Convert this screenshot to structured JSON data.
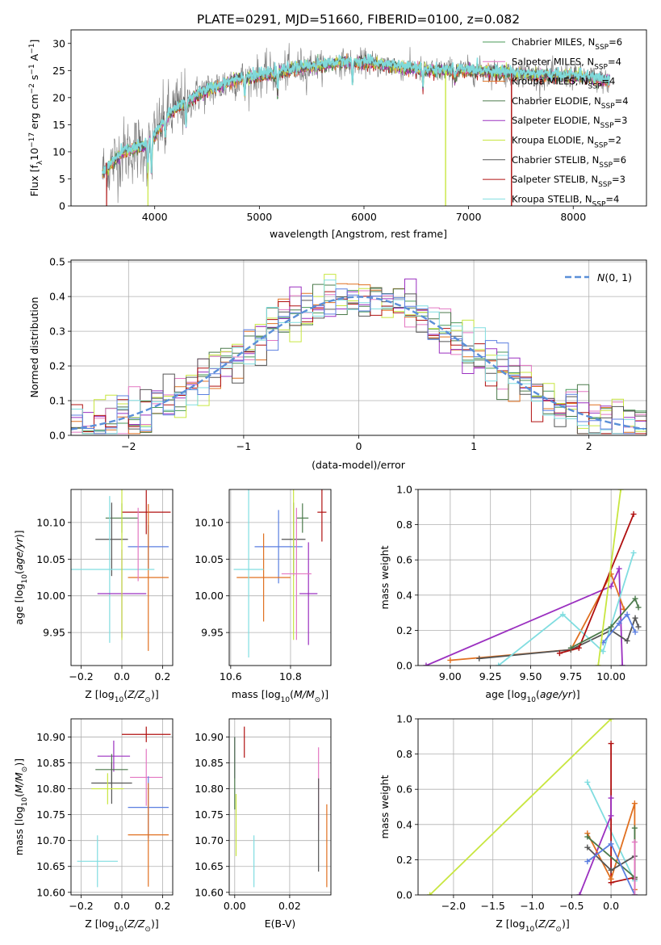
{
  "figure_title": "PLATE=0291, MJD=51660, FIBERID=0100, z=0.082",
  "colors": {
    "chabrier_miles": "#4a9a5a",
    "salpeter_miles": "#e377c2",
    "kroupa_miles": "#e07020",
    "chabrier_elodie": "#4b7a4b",
    "salpeter_elodie": "#9b30c0",
    "kroupa_elodie": "#c8e640",
    "chabrier_stelib": "#555555",
    "salpeter_stelib": "#b01010",
    "kroupa_stelib": "#80dde0",
    "blue": "#5b7fe0",
    "normal_curve": "#5a8fd8"
  },
  "chart_data": [
    {
      "id": "spectrum",
      "type": "line",
      "xlabel": "wavelength [Angstrom, rest frame]",
      "ylabel_parts": [
        "Flux [f",
        "λ",
        "10",
        "−17",
        " erg cm",
        "−2",
        " s",
        "−1",
        " A",
        "−1",
        "]"
      ],
      "xlim": [
        3200,
        8700
      ],
      "ylim": [
        0,
        32.5
      ],
      "xticks": [
        4000,
        5000,
        6000,
        7000,
        8000
      ],
      "yticks": [
        0,
        5,
        10,
        15,
        20,
        25,
        30
      ],
      "legend": [
        {
          "base": "Chabrier MILES, N",
          "n": "6",
          "color": "chabrier_miles"
        },
        {
          "base": "Salpeter MILES, N",
          "n": "4",
          "color": "salpeter_miles"
        },
        {
          "base": "Kroupa MILES, N",
          "n": "4",
          "color": "kroupa_miles"
        },
        {
          "base": "Chabrier ELODIE, N",
          "n": "4",
          "color": "chabrier_elodie"
        },
        {
          "base": "Salpeter ELODIE, N",
          "n": "3",
          "color": "salpeter_elodie"
        },
        {
          "base": "Kroupa ELODIE, N",
          "n": "2",
          "color": "kroupa_elodie"
        },
        {
          "base": "Chabrier STELIB, N",
          "n": "6",
          "color": "chabrier_stelib"
        },
        {
          "base": "Salpeter STELIB, N",
          "n": "3",
          "color": "salpeter_stelib"
        },
        {
          "base": "Kroupa STELIB, N",
          "n": "4",
          "color": "kroupa_stelib"
        }
      ],
      "legend_sub": "SSP",
      "continuum": [
        [
          3500,
          6
        ],
        [
          3600,
          8
        ],
        [
          3700,
          10
        ],
        [
          3800,
          10.5
        ],
        [
          3900,
          11
        ],
        [
          4000,
          13
        ],
        [
          4100,
          16
        ],
        [
          4200,
          18
        ],
        [
          4300,
          19
        ],
        [
          4400,
          20.5
        ],
        [
          4600,
          22
        ],
        [
          4800,
          23.5
        ],
        [
          5000,
          24
        ],
        [
          5200,
          24.8
        ],
        [
          5400,
          25.5
        ],
        [
          5600,
          26
        ],
        [
          5800,
          26.5
        ],
        [
          6000,
          26.5
        ],
        [
          6200,
          26
        ],
        [
          6400,
          25.5
        ],
        [
          6600,
          25
        ],
        [
          6800,
          25
        ],
        [
          7000,
          25
        ],
        [
          7200,
          24.8
        ],
        [
          7400,
          24.5
        ],
        [
          7600,
          24.2
        ],
        [
          7800,
          24
        ],
        [
          8000,
          24
        ],
        [
          8200,
          23.5
        ],
        [
          8350,
          23
        ]
      ],
      "absorption": [
        [
          3934,
          6
        ],
        [
          3969,
          6
        ],
        [
          4101,
          3
        ],
        [
          4300,
          4
        ],
        [
          4861,
          3
        ],
        [
          5175,
          4
        ],
        [
          5890,
          3.5
        ],
        [
          6563,
          3
        ],
        [
          6870,
          2
        ]
      ],
      "drops": [
        {
          "x": 6780,
          "color": "kroupa_elodie"
        },
        {
          "x": 7410,
          "color": "salpeter_stelib"
        }
      ],
      "low_wave_cut": [
        {
          "x": 3540,
          "color": "salpeter_stelib"
        },
        {
          "x": 3935,
          "color": "kroupa_elodie"
        }
      ]
    },
    {
      "id": "residual_hist",
      "type": "bar",
      "xlabel": "(data-model)/error",
      "ylabel": "Normed distribution",
      "xlim": [
        -2.5,
        2.5
      ],
      "ylim": [
        0,
        0.505
      ],
      "xticks": [
        -2,
        -1,
        0,
        1,
        2
      ],
      "yticks": [
        0.0,
        0.1,
        0.2,
        0.3,
        0.4,
        0.5
      ],
      "bin_width": 0.1,
      "legend_label": "N(0,1)"
    },
    {
      "id": "age_vs_Z",
      "type": "scatter",
      "xlabel": "Z [log10(Z/Z⊙)]",
      "ylabel": "age  [log10(age/yr)]",
      "xlim": [
        -0.25,
        0.25
      ],
      "ylim": [
        9.905,
        10.145
      ],
      "xticks": [
        -0.2,
        0.0,
        0.2
      ],
      "yticks": [
        9.95,
        10.0,
        10.05,
        10.1
      ],
      "points": [
        {
          "x": 0.12,
          "y": 10.114,
          "xerr": 0.12,
          "yerr": 0.03,
          "color": "salpeter_stelib"
        },
        {
          "x": 0.0,
          "y": 10.106,
          "xerr": 0.08,
          "yerr": 0.02,
          "color": "chabrier_elodie"
        },
        {
          "x": -0.05,
          "y": 10.077,
          "xerr": 0.08,
          "yerr": 0.05,
          "color": "chabrier_stelib"
        },
        {
          "x": 0.13,
          "y": 10.067,
          "xerr": 0.1,
          "yerr": 0.03,
          "color": "blue"
        },
        {
          "x": 0.13,
          "y": 10.025,
          "xerr": 0.1,
          "yerr": 0.1,
          "color": "kroupa_miles"
        },
        {
          "x": -0.06,
          "y": 10.036,
          "xerr": 0.22,
          "yerr": 0.1,
          "color": "kroupa_stelib"
        },
        {
          "x": 0.0,
          "y": 10.003,
          "xerr": 0.12,
          "yerr": 0.06,
          "color": "salpeter_elodie"
        },
        {
          "x": 0.0,
          "y": 10.07,
          "xerr": 0.0,
          "yerr": 0.13,
          "color": "kroupa_elodie"
        },
        {
          "x": 0.08,
          "y": 10.07,
          "xerr": 0.0,
          "yerr": 0.05,
          "color": "salpeter_miles"
        }
      ]
    },
    {
      "id": "age_vs_mass",
      "type": "scatter",
      "xlabel": "mass [log10(M/M⊙)]",
      "xlim": [
        10.595,
        10.935
      ],
      "ylim": [
        9.905,
        10.145
      ],
      "xticks": [
        10.6,
        10.8
      ],
      "yticks": [
        9.95,
        10.0,
        10.05,
        10.1
      ],
      "points": [
        {
          "x": 10.905,
          "y": 10.114,
          "xerr": 0.015,
          "yerr": 0.04,
          "color": "salpeter_stelib"
        },
        {
          "x": 10.84,
          "y": 10.106,
          "xerr": 0.02,
          "yerr": 0.02,
          "color": "chabrier_elodie"
        },
        {
          "x": 10.81,
          "y": 10.077,
          "xerr": 0.04,
          "yerr": 0.05,
          "color": "chabrier_stelib"
        },
        {
          "x": 10.76,
          "y": 10.067,
          "xerr": 0.08,
          "yerr": 0.05,
          "color": "blue"
        },
        {
          "x": 10.71,
          "y": 10.025,
          "xerr": 0.09,
          "yerr": 0.06,
          "color": "kroupa_miles"
        },
        {
          "x": 10.66,
          "y": 10.036,
          "xerr": 0.05,
          "yerr": 0.12,
          "color": "kroupa_stelib"
        },
        {
          "x": 10.86,
          "y": 10.003,
          "xerr": 0.03,
          "yerr": 0.07,
          "color": "salpeter_elodie"
        },
        {
          "x": 10.81,
          "y": 10.07,
          "xerr": 0.0,
          "yerr": 0.13,
          "color": "kroupa_elodie"
        },
        {
          "x": 10.82,
          "y": 10.03,
          "xerr": 0.05,
          "yerr": 0.09,
          "color": "salpeter_miles"
        }
      ]
    },
    {
      "id": "massweight_vs_age",
      "type": "line",
      "xlabel": "age  [log10(age/yr)]",
      "ylabel": "mass weight",
      "xlim": [
        8.8,
        10.22
      ],
      "ylim": [
        0,
        1.0
      ],
      "xticks": [
        9.0,
        9.25,
        9.5,
        9.75,
        10.0
      ],
      "yticks": [
        0.0,
        0.2,
        0.4,
        0.6,
        0.8,
        1.0
      ],
      "series": [
        {
          "color": "salpeter_elodie",
          "x": [
            8.85,
            10.0,
            10.05,
            10.07
          ],
          "y": [
            0.0,
            0.45,
            0.55,
            0.0
          ]
        },
        {
          "color": "kroupa_miles",
          "x": [
            9.0,
            9.75,
            10.0,
            10.08
          ],
          "y": [
            0.03,
            0.09,
            0.52,
            0.32
          ]
        },
        {
          "color": "chabrier_stelib",
          "x": [
            9.18,
            9.75,
            10.0,
            10.1,
            10.15,
            10.17
          ],
          "y": [
            0.04,
            0.09,
            0.2,
            0.14,
            0.27,
            0.22
          ]
        },
        {
          "color": "kroupa_stelib",
          "x": [
            9.3,
            9.7,
            9.95,
            10.14
          ],
          "y": [
            0.0,
            0.29,
            0.08,
            0.64
          ]
        },
        {
          "color": "salpeter_stelib",
          "x": [
            9.68,
            9.8,
            10.14
          ],
          "y": [
            0.07,
            0.1,
            0.86
          ]
        },
        {
          "color": "chabrier_elodie",
          "x": [
            9.75,
            10.0,
            10.15,
            10.17
          ],
          "y": [
            0.1,
            0.22,
            0.38,
            0.33
          ]
        },
        {
          "color": "blue",
          "x": [
            9.95,
            10.05,
            10.1,
            10.15
          ],
          "y": [
            0.13,
            0.24,
            0.29,
            0.19
          ]
        },
        {
          "color": "kroupa_elodie",
          "x": [
            9.92,
            10.06
          ],
          "y": [
            0.0,
            1.0
          ]
        }
      ]
    },
    {
      "id": "mass_vs_Z",
      "type": "scatter",
      "xlabel": "Z [log10(Z/Z⊙)]",
      "ylabel": "mass [log10(M/M⊙)]",
      "xlim": [
        -0.25,
        0.25
      ],
      "ylim": [
        10.595,
        10.935
      ],
      "xticks": [
        -0.2,
        0.0,
        0.2
      ],
      "yticks": [
        10.6,
        10.65,
        10.7,
        10.75,
        10.8,
        10.85,
        10.9
      ],
      "points": [
        {
          "x": 0.12,
          "y": 10.905,
          "xerr": 0.12,
          "yerr": 0.015,
          "color": "salpeter_stelib"
        },
        {
          "x": -0.04,
          "y": 10.863,
          "xerr": 0.08,
          "yerr": 0.03,
          "color": "salpeter_elodie"
        },
        {
          "x": -0.05,
          "y": 10.837,
          "xerr": 0.08,
          "yerr": 0.03,
          "color": "chabrier_elodie"
        },
        {
          "x": 0.12,
          "y": 10.822,
          "xerr": 0.08,
          "yerr": 0.055,
          "color": "salpeter_miles"
        },
        {
          "x": -0.05,
          "y": 10.811,
          "xerr": 0.1,
          "yerr": 0.04,
          "color": "chabrier_stelib"
        },
        {
          "x": -0.07,
          "y": 10.8,
          "xerr": 0.08,
          "yerr": 0.03,
          "color": "kroupa_elodie"
        },
        {
          "x": 0.13,
          "y": 10.764,
          "xerr": 0.1,
          "yerr": 0.06,
          "color": "blue"
        },
        {
          "x": 0.13,
          "y": 10.711,
          "xerr": 0.1,
          "yerr": 0.1,
          "color": "kroupa_miles"
        },
        {
          "x": -0.12,
          "y": 10.66,
          "xerr": 0.1,
          "yerr": 0.05,
          "color": "kroupa_stelib"
        }
      ]
    },
    {
      "id": "mass_vs_ebv",
      "type": "scatter",
      "xlabel": "E(B-V)",
      "xlim": [
        -0.002,
        0.035
      ],
      "ylim": [
        10.595,
        10.935
      ],
      "xticks": [
        0.0,
        0.02
      ],
      "yticks": [
        10.6,
        10.65,
        10.7,
        10.75,
        10.8,
        10.85,
        10.9
      ],
      "points": [
        {
          "x": 0.0035,
          "y": 10.89,
          "yerr": 0.03,
          "color": "salpeter_stelib"
        },
        {
          "x": 0.0,
          "y": 10.86,
          "yerr": 0.04,
          "color": "salpeter_elodie"
        },
        {
          "x": 0.0,
          "y": 10.83,
          "yerr": 0.07,
          "color": "chabrier_elodie"
        },
        {
          "x": 0.0005,
          "y": 10.73,
          "yerr": 0.06,
          "color": "kroupa_elodie"
        },
        {
          "x": 0.007,
          "y": 10.66,
          "yerr": 0.05,
          "color": "kroupa_stelib"
        },
        {
          "x": 0.0305,
          "y": 10.8,
          "yerr": 0.08,
          "color": "salpeter_miles"
        },
        {
          "x": 0.0305,
          "y": 10.73,
          "yerr": 0.09,
          "color": "chabrier_stelib"
        },
        {
          "x": 0.0335,
          "y": 10.69,
          "yerr": 0.08,
          "color": "kroupa_miles"
        }
      ]
    },
    {
      "id": "massweight_vs_Z",
      "type": "line",
      "xlabel": "Z [log10(Z/Z⊙)]",
      "ylabel": "mass weight",
      "xlim": [
        -2.45,
        0.45
      ],
      "ylim": [
        0,
        1.0
      ],
      "xticks": [
        -2.0,
        -1.5,
        -1.0,
        -0.5,
        0.0
      ],
      "yticks": [
        0.0,
        0.2,
        0.4,
        0.6,
        0.8,
        1.0
      ],
      "series": [
        {
          "color": "kroupa_elodie",
          "x": [
            -2.3,
            0.0
          ],
          "y": [
            0.0,
            1.0
          ]
        },
        {
          "color": "kroupa_stelib",
          "x": [
            -0.3,
            0.3,
            0.3
          ],
          "y": [
            0.64,
            0.08,
            0.0
          ]
        },
        {
          "color": "salpeter_stelib",
          "x": [
            0.0,
            0.0,
            0.3
          ],
          "y": [
            0.86,
            0.07,
            0.1
          ]
        },
        {
          "color": "salpeter_elodie",
          "x": [
            -0.4,
            0.0,
            0.0
          ],
          "y": [
            0.0,
            0.45,
            0.55
          ]
        },
        {
          "color": "kroupa_miles",
          "x": [
            -0.3,
            0.0,
            0.3,
            0.3
          ],
          "y": [
            0.35,
            0.09,
            0.52,
            0.03
          ]
        },
        {
          "color": "chabrier_elodie",
          "x": [
            -0.3,
            0.3,
            0.3
          ],
          "y": [
            0.33,
            0.1,
            0.38
          ]
        },
        {
          "color": "chabrier_stelib",
          "x": [
            -0.3,
            0.0,
            0.3,
            0.3
          ],
          "y": [
            0.27,
            0.14,
            0.22,
            0.09
          ]
        },
        {
          "color": "blue",
          "x": [
            -0.3,
            0.0,
            0.3
          ],
          "y": [
            0.19,
            0.29,
            0.0
          ]
        },
        {
          "color": "salpeter_miles",
          "x": [
            0.3,
            0.3
          ],
          "y": [
            0.0,
            0.3
          ]
        }
      ]
    }
  ]
}
